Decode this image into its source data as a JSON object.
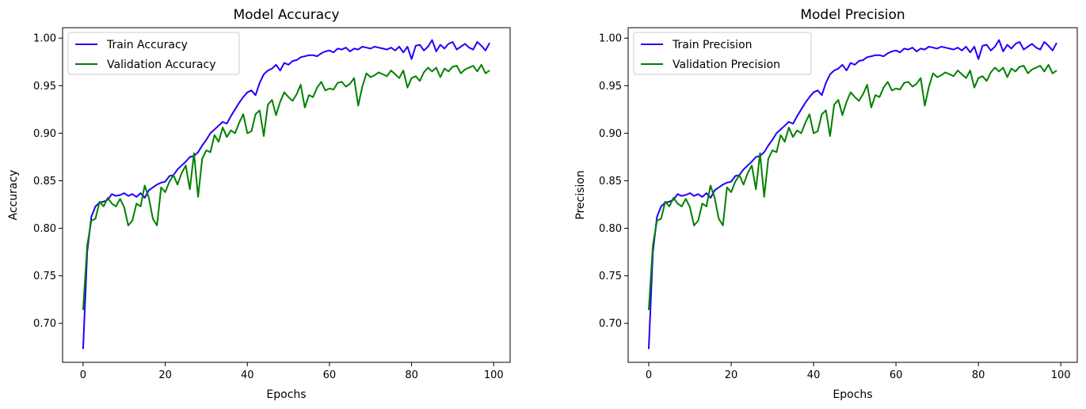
{
  "chart_data": [
    {
      "type": "line",
      "title": "Model Accuracy",
      "xlabel": "Epochs",
      "ylabel": "Accuracy",
      "xlim": [
        -5,
        104
      ],
      "ylim": [
        0.659,
        1.011
      ],
      "xticks": [
        0,
        20,
        40,
        60,
        80,
        100
      ],
      "yticks": [
        0.7,
        0.75,
        0.8,
        0.85,
        0.9,
        0.95,
        1.0
      ],
      "grid": false,
      "legend": "top-left",
      "series": [
        {
          "name": "Train Accuracy",
          "color": "#1f00ff",
          "x": [
            0,
            1,
            2,
            3,
            4,
            5,
            6,
            7,
            8,
            9,
            10,
            11,
            12,
            13,
            14,
            15,
            16,
            17,
            18,
            19,
            20,
            21,
            22,
            23,
            24,
            25,
            26,
            27,
            28,
            29,
            30,
            31,
            32,
            33,
            34,
            35,
            36,
            37,
            38,
            39,
            40,
            41,
            42,
            43,
            44,
            45,
            46,
            47,
            48,
            49,
            50,
            51,
            52,
            53,
            54,
            55,
            56,
            57,
            58,
            59,
            60,
            61,
            62,
            63,
            64,
            65,
            66,
            67,
            68,
            69,
            70,
            71,
            72,
            73,
            74,
            75,
            76,
            77,
            78,
            79,
            80,
            81,
            82,
            83,
            84,
            85,
            86,
            87,
            88,
            89,
            90,
            91,
            92,
            93,
            94,
            95,
            96,
            97,
            98,
            99
          ],
          "values": [
            0.673,
            0.775,
            0.812,
            0.823,
            0.827,
            0.828,
            0.83,
            0.836,
            0.834,
            0.835,
            0.837,
            0.834,
            0.836,
            0.833,
            0.837,
            0.832,
            0.84,
            0.843,
            0.846,
            0.848,
            0.849,
            0.855,
            0.856,
            0.862,
            0.866,
            0.87,
            0.875,
            0.876,
            0.88,
            0.887,
            0.893,
            0.9,
            0.904,
            0.908,
            0.912,
            0.91,
            0.918,
            0.925,
            0.932,
            0.938,
            0.943,
            0.945,
            0.94,
            0.953,
            0.962,
            0.966,
            0.968,
            0.972,
            0.966,
            0.974,
            0.972,
            0.976,
            0.977,
            0.98,
            0.981,
            0.982,
            0.982,
            0.981,
            0.984,
            0.986,
            0.987,
            0.985,
            0.989,
            0.988,
            0.99,
            0.986,
            0.989,
            0.988,
            0.991,
            0.99,
            0.989,
            0.991,
            0.99,
            0.989,
            0.988,
            0.99,
            0.987,
            0.991,
            0.985,
            0.991,
            0.978,
            0.992,
            0.993,
            0.987,
            0.991,
            0.998,
            0.986,
            0.993,
            0.989,
            0.994,
            0.996,
            0.988,
            0.991,
            0.994,
            0.99,
            0.988,
            0.996,
            0.992,
            0.987,
            0.995
          ]
        },
        {
          "name": "Validation Accuracy",
          "color": "#008000",
          "x": [
            0,
            1,
            2,
            3,
            4,
            5,
            6,
            7,
            8,
            9,
            10,
            11,
            12,
            13,
            14,
            15,
            16,
            17,
            18,
            19,
            20,
            21,
            22,
            23,
            24,
            25,
            26,
            27,
            28,
            29,
            30,
            31,
            32,
            33,
            34,
            35,
            36,
            37,
            38,
            39,
            40,
            41,
            42,
            43,
            44,
            45,
            46,
            47,
            48,
            49,
            50,
            51,
            52,
            53,
            54,
            55,
            56,
            57,
            58,
            59,
            60,
            61,
            62,
            63,
            64,
            65,
            66,
            67,
            68,
            69,
            70,
            71,
            72,
            73,
            74,
            75,
            76,
            77,
            78,
            79,
            80,
            81,
            82,
            83,
            84,
            85,
            86,
            87,
            88,
            89,
            90,
            91,
            92,
            93,
            94,
            95,
            96,
            97,
            98,
            99
          ],
          "values": [
            0.714,
            0.782,
            0.808,
            0.81,
            0.828,
            0.823,
            0.832,
            0.826,
            0.823,
            0.831,
            0.822,
            0.803,
            0.808,
            0.826,
            0.823,
            0.845,
            0.832,
            0.81,
            0.803,
            0.843,
            0.838,
            0.849,
            0.856,
            0.846,
            0.858,
            0.866,
            0.841,
            0.879,
            0.833,
            0.873,
            0.882,
            0.88,
            0.898,
            0.891,
            0.906,
            0.896,
            0.903,
            0.9,
            0.911,
            0.92,
            0.9,
            0.902,
            0.92,
            0.924,
            0.897,
            0.93,
            0.935,
            0.919,
            0.933,
            0.943,
            0.938,
            0.934,
            0.941,
            0.951,
            0.927,
            0.94,
            0.938,
            0.948,
            0.954,
            0.945,
            0.947,
            0.946,
            0.953,
            0.954,
            0.949,
            0.952,
            0.958,
            0.929,
            0.949,
            0.963,
            0.959,
            0.961,
            0.964,
            0.962,
            0.96,
            0.966,
            0.962,
            0.958,
            0.966,
            0.948,
            0.958,
            0.96,
            0.955,
            0.964,
            0.969,
            0.965,
            0.969,
            0.959,
            0.968,
            0.965,
            0.97,
            0.971,
            0.963,
            0.967,
            0.969,
            0.971,
            0.965,
            0.972,
            0.963,
            0.966
          ]
        }
      ]
    },
    {
      "type": "line",
      "title": "Model Precision",
      "xlabel": "Epochs",
      "ylabel": "Precision",
      "xlim": [
        -5,
        104
      ],
      "ylim": [
        0.659,
        1.011
      ],
      "xticks": [
        0,
        20,
        40,
        60,
        80,
        100
      ],
      "yticks": [
        0.7,
        0.75,
        0.8,
        0.85,
        0.9,
        0.95,
        1.0
      ],
      "grid": false,
      "legend": "top-left",
      "series": [
        {
          "name": "Train Precision",
          "color": "#1f00ff",
          "x": [
            0,
            1,
            2,
            3,
            4,
            5,
            6,
            7,
            8,
            9,
            10,
            11,
            12,
            13,
            14,
            15,
            16,
            17,
            18,
            19,
            20,
            21,
            22,
            23,
            24,
            25,
            26,
            27,
            28,
            29,
            30,
            31,
            32,
            33,
            34,
            35,
            36,
            37,
            38,
            39,
            40,
            41,
            42,
            43,
            44,
            45,
            46,
            47,
            48,
            49,
            50,
            51,
            52,
            53,
            54,
            55,
            56,
            57,
            58,
            59,
            60,
            61,
            62,
            63,
            64,
            65,
            66,
            67,
            68,
            69,
            70,
            71,
            72,
            73,
            74,
            75,
            76,
            77,
            78,
            79,
            80,
            81,
            82,
            83,
            84,
            85,
            86,
            87,
            88,
            89,
            90,
            91,
            92,
            93,
            94,
            95,
            96,
            97,
            98,
            99
          ],
          "values": [
            0.673,
            0.775,
            0.812,
            0.823,
            0.827,
            0.828,
            0.83,
            0.836,
            0.834,
            0.835,
            0.837,
            0.834,
            0.836,
            0.833,
            0.837,
            0.832,
            0.84,
            0.843,
            0.846,
            0.848,
            0.849,
            0.855,
            0.856,
            0.862,
            0.866,
            0.87,
            0.875,
            0.876,
            0.88,
            0.887,
            0.893,
            0.9,
            0.904,
            0.908,
            0.912,
            0.91,
            0.918,
            0.925,
            0.932,
            0.938,
            0.943,
            0.945,
            0.94,
            0.953,
            0.962,
            0.966,
            0.968,
            0.972,
            0.966,
            0.974,
            0.972,
            0.976,
            0.977,
            0.98,
            0.981,
            0.982,
            0.982,
            0.981,
            0.984,
            0.986,
            0.987,
            0.985,
            0.989,
            0.988,
            0.99,
            0.986,
            0.989,
            0.988,
            0.991,
            0.99,
            0.989,
            0.991,
            0.99,
            0.989,
            0.988,
            0.99,
            0.987,
            0.991,
            0.985,
            0.991,
            0.978,
            0.992,
            0.993,
            0.987,
            0.991,
            0.998,
            0.986,
            0.993,
            0.989,
            0.994,
            0.996,
            0.988,
            0.991,
            0.994,
            0.99,
            0.988,
            0.996,
            0.992,
            0.987,
            0.995
          ]
        },
        {
          "name": "Validation Precision",
          "color": "#008000",
          "x": [
            0,
            1,
            2,
            3,
            4,
            5,
            6,
            7,
            8,
            9,
            10,
            11,
            12,
            13,
            14,
            15,
            16,
            17,
            18,
            19,
            20,
            21,
            22,
            23,
            24,
            25,
            26,
            27,
            28,
            29,
            30,
            31,
            32,
            33,
            34,
            35,
            36,
            37,
            38,
            39,
            40,
            41,
            42,
            43,
            44,
            45,
            46,
            47,
            48,
            49,
            50,
            51,
            52,
            53,
            54,
            55,
            56,
            57,
            58,
            59,
            60,
            61,
            62,
            63,
            64,
            65,
            66,
            67,
            68,
            69,
            70,
            71,
            72,
            73,
            74,
            75,
            76,
            77,
            78,
            79,
            80,
            81,
            82,
            83,
            84,
            85,
            86,
            87,
            88,
            89,
            90,
            91,
            92,
            93,
            94,
            95,
            96,
            97,
            98,
            99
          ],
          "values": [
            0.714,
            0.782,
            0.808,
            0.81,
            0.828,
            0.823,
            0.832,
            0.826,
            0.823,
            0.831,
            0.822,
            0.803,
            0.808,
            0.826,
            0.823,
            0.845,
            0.832,
            0.81,
            0.803,
            0.843,
            0.838,
            0.849,
            0.856,
            0.846,
            0.858,
            0.866,
            0.841,
            0.879,
            0.833,
            0.873,
            0.882,
            0.88,
            0.898,
            0.891,
            0.906,
            0.896,
            0.903,
            0.9,
            0.911,
            0.92,
            0.9,
            0.902,
            0.92,
            0.924,
            0.897,
            0.93,
            0.935,
            0.919,
            0.933,
            0.943,
            0.938,
            0.934,
            0.941,
            0.951,
            0.927,
            0.94,
            0.938,
            0.948,
            0.954,
            0.945,
            0.947,
            0.946,
            0.953,
            0.954,
            0.949,
            0.952,
            0.958,
            0.929,
            0.949,
            0.963,
            0.959,
            0.961,
            0.964,
            0.962,
            0.96,
            0.966,
            0.962,
            0.958,
            0.966,
            0.948,
            0.958,
            0.96,
            0.955,
            0.964,
            0.969,
            0.965,
            0.969,
            0.959,
            0.968,
            0.965,
            0.97,
            0.971,
            0.963,
            0.967,
            0.969,
            0.971,
            0.965,
            0.972,
            0.963,
            0.966
          ]
        }
      ]
    }
  ]
}
